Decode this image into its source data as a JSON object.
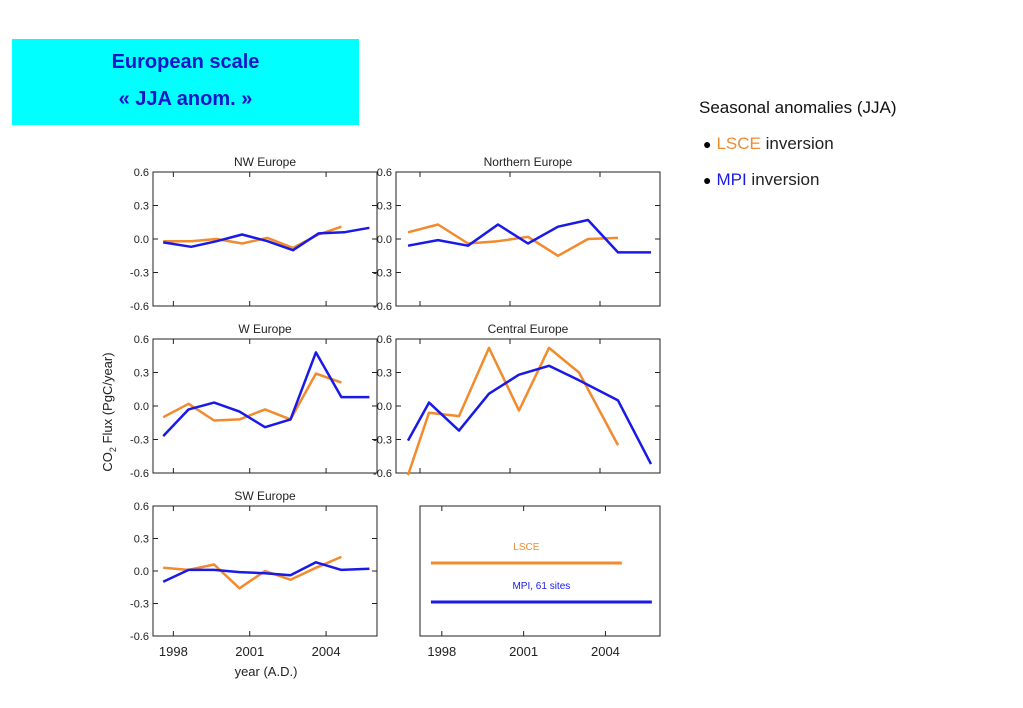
{
  "header": {
    "line1": "European scale",
    "line2": "« JJA anom. »"
  },
  "legend_side": {
    "heading": "Seasonal anomalies (JJA)",
    "items": [
      {
        "name": "LSCE",
        "suffix": " inversion",
        "color": "#f28a2e"
      },
      {
        "name": "MPI",
        "suffix": " inversion",
        "color": "#1a1ae6"
      }
    ]
  },
  "chart_data": [
    {
      "type": "line",
      "title": "NW Europe",
      "ylim": [
        -0.6,
        0.6
      ],
      "yticks": [
        "0.6",
        "0.3",
        "0.0",
        "-0.3",
        "-0.6"
      ],
      "xticks": [
        "1998",
        "2001",
        "2004"
      ],
      "series": [
        {
          "name": "LSCE",
          "color": "#f28a2e",
          "x": [
            1997.6,
            1998.7,
            1999.7,
            2000.7,
            2001.7,
            2002.7,
            2003.7,
            2004.6
          ],
          "y": [
            -0.02,
            -0.02,
            0.0,
            -0.04,
            0.01,
            -0.08,
            0.04,
            0.11
          ]
        },
        {
          "name": "MPI",
          "color": "#1a1ae6",
          "x": [
            1997.6,
            1998.7,
            1999.7,
            2000.7,
            2001.7,
            2002.7,
            2003.7,
            2004.7,
            2005.7
          ],
          "y": [
            -0.03,
            -0.07,
            -0.02,
            0.04,
            -0.02,
            -0.1,
            0.05,
            0.06,
            0.1
          ]
        }
      ]
    },
    {
      "type": "line",
      "title": "Northern Europe",
      "ylim": [
        -0.6,
        0.6
      ],
      "yticks": [
        "0.6",
        "0.3",
        "0.0",
        "-0.3",
        "-0.6"
      ],
      "xticks": [
        "1998",
        "2001",
        "2004"
      ],
      "series": [
        {
          "name": "LSCE",
          "color": "#f28a2e",
          "x": [
            1997.6,
            1998.6,
            1999.6,
            2000.6,
            2001.6,
            2002.6,
            2003.6,
            2004.6
          ],
          "y": [
            0.06,
            0.13,
            -0.04,
            -0.02,
            0.02,
            -0.15,
            0.0,
            0.01
          ]
        },
        {
          "name": "MPI",
          "color": "#1a1ae6",
          "x": [
            1997.6,
            1998.6,
            1999.6,
            2000.6,
            2001.6,
            2002.6,
            2003.6,
            2004.6,
            2005.7
          ],
          "y": [
            -0.06,
            -0.01,
            -0.06,
            0.13,
            -0.04,
            0.11,
            0.17,
            -0.12,
            -0.12
          ]
        }
      ]
    },
    {
      "type": "line",
      "title": "W Europe",
      "ylim": [
        -0.6,
        0.6
      ],
      "yticks": [
        "0.6",
        "0.3",
        "0.0",
        "-0.3",
        "-0.6"
      ],
      "xticks": [
        "1998",
        "2001",
        "2004"
      ],
      "series": [
        {
          "name": "LSCE",
          "color": "#f28a2e",
          "x": [
            1997.6,
            1998.6,
            1999.6,
            2000.6,
            2001.6,
            2002.6,
            2003.6,
            2004.6
          ],
          "y": [
            -0.1,
            0.02,
            -0.13,
            -0.12,
            -0.03,
            -0.12,
            0.29,
            0.21
          ]
        },
        {
          "name": "MPI",
          "color": "#1a1ae6",
          "x": [
            1997.6,
            1998.6,
            1999.6,
            2000.6,
            2001.6,
            2002.6,
            2003.6,
            2004.6,
            2005.7
          ],
          "y": [
            -0.27,
            -0.03,
            0.03,
            -0.05,
            -0.19,
            -0.12,
            0.48,
            0.08,
            0.08
          ]
        }
      ]
    },
    {
      "type": "line",
      "title": "Central Europe",
      "ylim": [
        -0.6,
        0.6
      ],
      "yticks": [
        "0.6",
        "0.3",
        "0.0",
        "-0.3",
        "-0.6"
      ],
      "xticks": [
        "1998",
        "2001",
        "2004"
      ],
      "series": [
        {
          "name": "LSCE",
          "color": "#f28a2e",
          "x": [
            1997.6,
            1998.3,
            1999.3,
            2000.3,
            2001.3,
            2002.3,
            2003.3,
            2004.6
          ],
          "y": [
            -0.62,
            -0.06,
            -0.09,
            0.52,
            -0.04,
            0.52,
            0.3,
            -0.35
          ]
        },
        {
          "name": "MPI",
          "color": "#1a1ae6",
          "x": [
            1997.6,
            1998.3,
            1999.3,
            2000.3,
            2001.3,
            2002.3,
            2003.3,
            2004.6,
            2005.7
          ],
          "y": [
            -0.31,
            0.03,
            -0.22,
            0.11,
            0.28,
            0.36,
            0.23,
            0.05,
            -0.52
          ]
        }
      ]
    },
    {
      "type": "line",
      "title": "SW Europe",
      "ylim": [
        -0.6,
        0.6
      ],
      "yticks": [
        "0.6",
        "0.3",
        "0.0",
        "-0.3",
        "-0.6"
      ],
      "xticks": [
        "1998",
        "2001",
        "2004"
      ],
      "series": [
        {
          "name": "LSCE",
          "color": "#f28a2e",
          "x": [
            1997.6,
            1998.6,
            1999.6,
            2000.6,
            2001.6,
            2002.6,
            2003.6,
            2004.6
          ],
          "y": [
            0.03,
            0.01,
            0.06,
            -0.16,
            0.0,
            -0.08,
            0.03,
            0.13
          ]
        },
        {
          "name": "MPI",
          "color": "#1a1ae6",
          "x": [
            1997.6,
            1998.6,
            1999.6,
            2000.6,
            2001.6,
            2002.6,
            2003.6,
            2004.6,
            2005.7
          ],
          "y": [
            -0.1,
            0.01,
            0.01,
            -0.01,
            -0.02,
            -0.04,
            0.08,
            0.01,
            0.02
          ]
        }
      ]
    }
  ],
  "legend_panel": {
    "items": [
      {
        "label": "LSCE",
        "color": "#f28a2e",
        "span": [
          1997.6,
          2004.6
        ]
      },
      {
        "label": "MPI, 61 sites",
        "color": "#1a1ae6",
        "span": [
          1997.6,
          2005.7
        ]
      }
    ],
    "xticks": [
      "1998",
      "2001",
      "2004"
    ]
  },
  "axes": {
    "ylabel_main": "CO",
    "ylabel_sub": "2",
    "ylabel_rest": " Flux (PgC/year)",
    "xlabel": "year (A.D.)"
  }
}
